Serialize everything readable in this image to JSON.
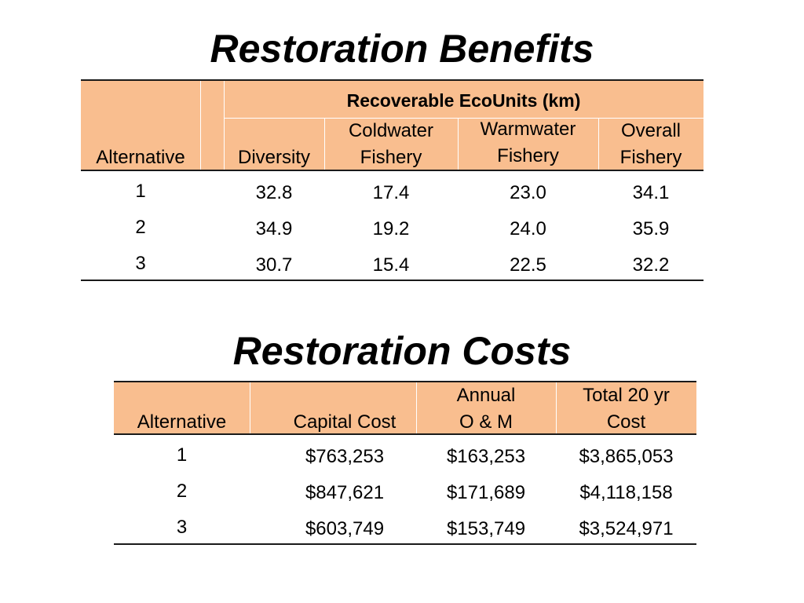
{
  "benefits": {
    "title": "Restoration Benefits",
    "group_header": "Recoverable EcoUnits (km)",
    "columns": {
      "alternative": "Alternative",
      "diversity": "Diversity",
      "coldwater": [
        "Coldwater",
        "Fishery"
      ],
      "warmwater": [
        "Warmwater",
        "Fishery"
      ],
      "overall": [
        "Overall",
        "Fishery"
      ]
    },
    "rows": [
      {
        "alt": "1",
        "diversity": "32.8",
        "coldwater": "17.4",
        "warmwater": "23.0",
        "overall": "34.1"
      },
      {
        "alt": "2",
        "diversity": "34.9",
        "coldwater": "19.2",
        "warmwater": "24.0",
        "overall": "35.9"
      },
      {
        "alt": "3",
        "diversity": "30.7",
        "coldwater": "15.4",
        "warmwater": "22.5",
        "overall": "32.2"
      }
    ]
  },
  "costs": {
    "title": "Restoration Costs",
    "columns": {
      "alternative": "Alternative",
      "capital": "Capital Cost",
      "annual": [
        "Annual",
        "O & M"
      ],
      "total": [
        "Total 20 yr",
        "Cost"
      ]
    },
    "rows": [
      {
        "alt": "1",
        "capital": "$763,253",
        "annual": "$163,253",
        "total": "$3,865,053"
      },
      {
        "alt": "2",
        "capital": "$847,621",
        "annual": "$171,689",
        "total": "$4,118,158"
      },
      {
        "alt": "3",
        "capital": "$603,749",
        "annual": "$153,749",
        "total": "$3,524,971"
      }
    ]
  },
  "colors": {
    "header_fill": "#f9be8f",
    "rule": "#1a1a1a"
  }
}
